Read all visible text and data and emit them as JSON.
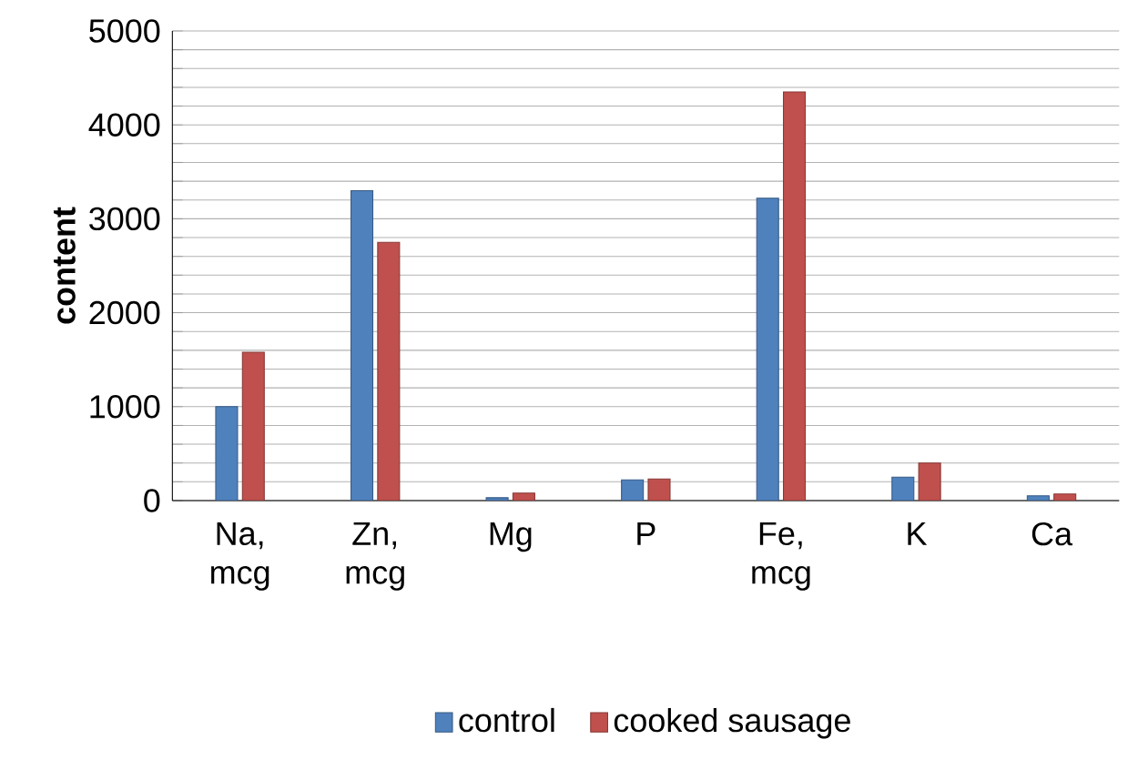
{
  "chart_data": {
    "type": "bar",
    "ylabel": "content",
    "categories": [
      "Na, mcg",
      "Zn, mcg",
      "Mg",
      "P",
      "Fe, mcg",
      "K",
      "Ca"
    ],
    "series": [
      {
        "name": "control",
        "color": "#4f81bd",
        "values": [
          1000,
          3300,
          30,
          220,
          3220,
          250,
          50
        ]
      },
      {
        "name": "cooked sausage",
        "color": "#c0504d",
        "values": [
          1580,
          2750,
          80,
          230,
          4350,
          400,
          70
        ]
      }
    ],
    "ylim": [
      0,
      5000
    ],
    "yticks": [
      0,
      {
        "value": 200,
        "label": null
      },
      {
        "value": 400,
        "label": null
      },
      {
        "value": 600,
        "label": null
      },
      {
        "value": 800,
        "label": null
      },
      1000,
      {
        "value": 1200,
        "label": null
      },
      {
        "value": 1400,
        "label": null
      },
      {
        "value": 1600,
        "label": null
      },
      {
        "value": 1800,
        "label": null
      },
      2000,
      {
        "value": 2200,
        "label": null
      },
      {
        "value": 2400,
        "label": null
      },
      {
        "value": 2600,
        "label": null
      },
      {
        "value": 2800,
        "label": null
      },
      3000,
      {
        "value": 3200,
        "label": null
      },
      {
        "value": 3400,
        "label": null
      },
      {
        "value": 3600,
        "label": null
      },
      {
        "value": 3800,
        "label": null
      },
      4000,
      {
        "value": 4200,
        "label": null
      },
      {
        "value": 4400,
        "label": null
      },
      {
        "value": 4600,
        "label": null
      },
      {
        "value": 4800,
        "label": null
      },
      5000
    ],
    "grid": "y",
    "legend": "bottom"
  }
}
